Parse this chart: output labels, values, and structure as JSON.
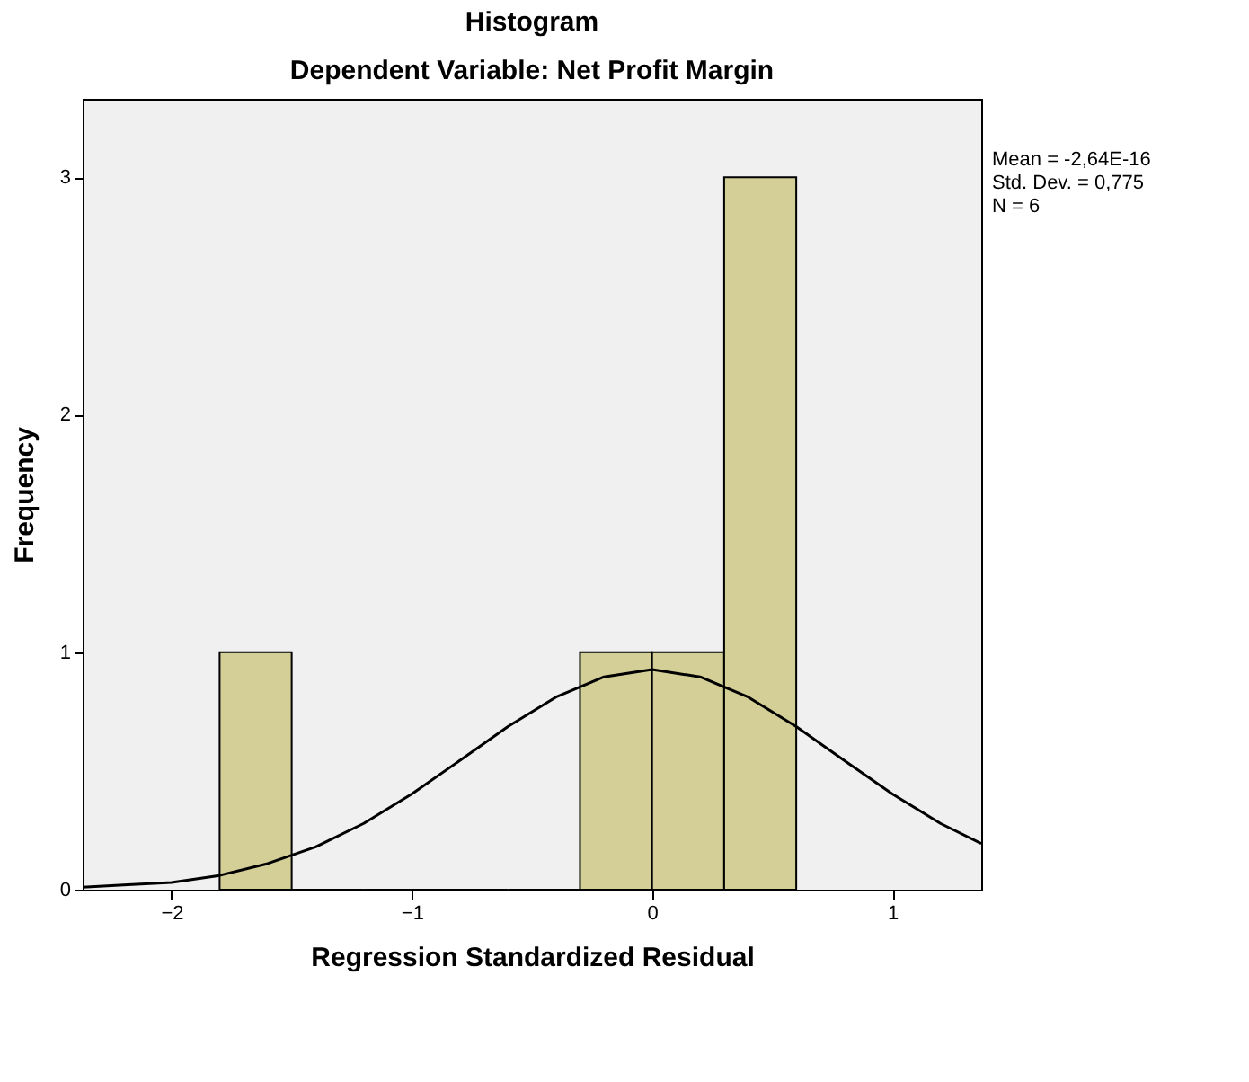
{
  "chart_data": {
    "type": "histogram",
    "title": "Histogram",
    "subtitle": "Dependent Variable: Net Profit Margin",
    "xlabel": "Regression Standardized Residual",
    "ylabel": "Frequency",
    "bins": [
      -1.8,
      -1.5,
      -1.2,
      -0.9,
      -0.6,
      -0.3,
      0,
      0.3,
      0.6
    ],
    "values": [
      1,
      0,
      0,
      0,
      0,
      1,
      1,
      3
    ],
    "color": "#d3cf96",
    "series": [
      {
        "type": "line",
        "color": "#000000",
        "x": [
          -2.37,
          -2.2,
          -2.0,
          -1.8,
          -1.6,
          -1.4,
          -1.2,
          -1.0,
          -0.8,
          -0.6,
          -0.4,
          -0.2,
          0,
          0.2,
          0.4,
          0.6,
          0.8,
          1.0,
          1.2,
          1.37
        ],
        "values": [
          0.01,
          0.02,
          0.03,
          0.06,
          0.11,
          0.18,
          0.279,
          0.403,
          0.544,
          0.687,
          0.811,
          0.896,
          0.927,
          0.896,
          0.811,
          0.687,
          0.544,
          0.403,
          0.279,
          0.194
        ]
      }
    ],
    "xlim": [
      -2.37,
      1.37
    ],
    "ylim": [
      0,
      3.33
    ],
    "xticks": [
      -2,
      -1,
      0,
      1
    ],
    "yticks": [
      0,
      1,
      2,
      3
    ],
    "grid": false,
    "annotations": [
      "Mean = -2,64E-16",
      "Std. Dev. = 0,775",
      "N = 6"
    ]
  }
}
